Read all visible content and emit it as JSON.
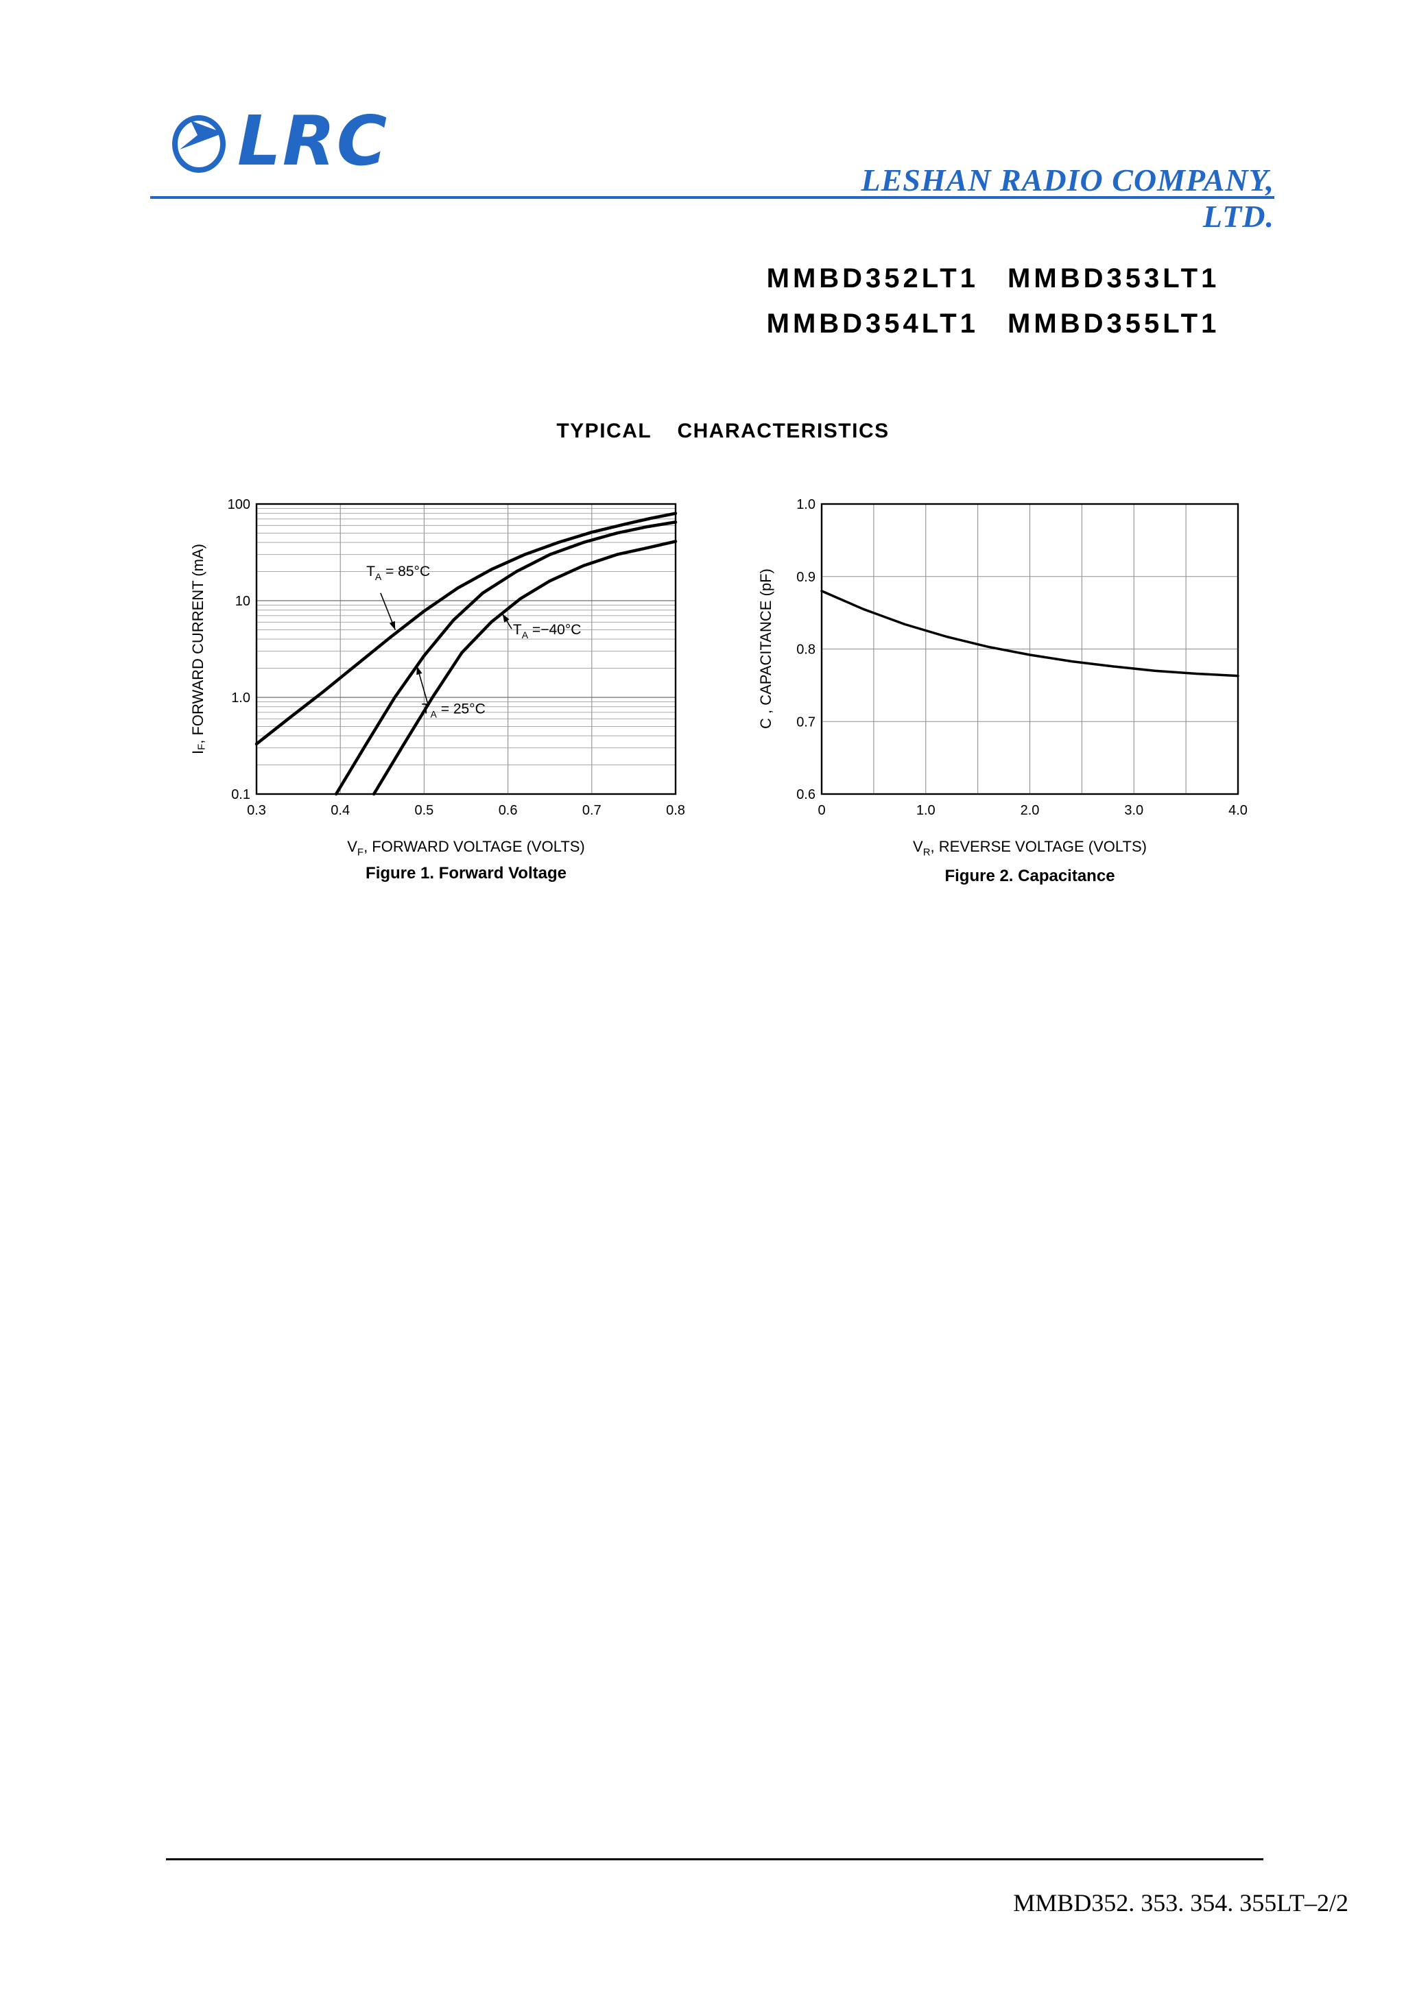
{
  "header": {
    "logo_text": "LRC",
    "company": "LESHAN RADIO COMPANY, LTD.",
    "accent_color": "#2268c4"
  },
  "title_block": {
    "line1": "MMBD352LT1 MMBD353LT1",
    "line2": "MMBD354LT1 MMBD355LT1"
  },
  "section_title": "TYPICAL CHARACTERISTICS",
  "footer": {
    "page_ref": "MMBD352. 353. 354. 355LT–2/2"
  },
  "chart_data": [
    {
      "id": "forward-voltage",
      "type": "line",
      "title": "Figure 1. Forward Voltage",
      "xlabel": {
        "pre": "V",
        "sub": "F",
        "post": ", FORWARD VOLTAGE (VOLTS)"
      },
      "ylabel": {
        "pre": "I",
        "sub": "F",
        "post": ", FORWARD CURRENT (mA)"
      },
      "xlim": [
        0.3,
        0.8
      ],
      "ylim": [
        0.1,
        100
      ],
      "yscale": "log",
      "grid": true,
      "x_ticks": [
        0.3,
        0.4,
        0.5,
        0.6,
        0.7,
        0.8
      ],
      "x_tick_labels": [
        "0.3",
        "0.4",
        "0.5",
        "0.6",
        "0.7",
        "0.8"
      ],
      "x_grid": [
        0.4,
        0.5,
        0.6,
        0.7
      ],
      "y_ticks": [
        0.1,
        1,
        10,
        100
      ],
      "y_tick_labels": [
        "0.1",
        "1.0",
        "10",
        "100"
      ],
      "series": [
        {
          "name": "TA = 85°C",
          "x": [
            0.3,
            0.34,
            0.38,
            0.42,
            0.46,
            0.5,
            0.54,
            0.58,
            0.62,
            0.66,
            0.7,
            0.74,
            0.77,
            0.8
          ],
          "y": [
            0.33,
            0.62,
            1.15,
            2.2,
            4.2,
            7.8,
            13.5,
            21,
            30,
            40,
            51,
            62,
            71,
            80
          ]
        },
        {
          "name": "TA = 25°C",
          "x": [
            0.395,
            0.43,
            0.465,
            0.5,
            0.535,
            0.57,
            0.61,
            0.65,
            0.69,
            0.73,
            0.765,
            0.8
          ],
          "y": [
            0.1,
            0.32,
            1.0,
            2.7,
            6.3,
            12,
            20,
            30,
            40,
            50,
            58,
            65
          ]
        },
        {
          "name": "TA = −40°C",
          "x": [
            0.44,
            0.475,
            0.51,
            0.545,
            0.58,
            0.615,
            0.65,
            0.69,
            0.73,
            0.765,
            0.8
          ],
          "y": [
            0.1,
            0.32,
            1.0,
            2.9,
            6.0,
            10.5,
            16,
            23,
            30,
            35,
            41
          ]
        }
      ],
      "annotations": [
        {
          "label": {
            "pre": "T",
            "sub": "A",
            "post": " = 85°C"
          },
          "text_x": 0.431,
          "text_y": 18,
          "arrow": [
            [
              0.448,
              12.0
            ],
            [
              0.4655,
              5.0
            ]
          ]
        },
        {
          "label": {
            "pre": "T",
            "sub": "A",
            "post": " =−40°C"
          },
          "text_x": 0.606,
          "text_y": 4.5,
          "arrow": [
            [
              0.6045,
              5.1
            ],
            [
              0.5935,
              7.3
            ]
          ]
        },
        {
          "label": {
            "pre": "T",
            "sub": "A",
            "post": " = 25°C"
          },
          "text_x": 0.497,
          "text_y": 0.68,
          "arrow": [
            [
              0.504,
              0.88
            ],
            [
              0.4915,
              2.1
            ]
          ]
        }
      ]
    },
    {
      "id": "capacitance",
      "type": "line",
      "title": "Figure 2. Capacitance",
      "xlabel": {
        "pre": "V",
        "sub": "R",
        "post": ", REVERSE VOLTAGE (VOLTS)"
      },
      "ylabel": {
        "pre": "C",
        "sub": "",
        "post": " , CAPACITANCE (pF)"
      },
      "xlim": [
        0,
        4
      ],
      "ylim": [
        0.6,
        1.0
      ],
      "yscale": "linear",
      "grid": true,
      "x_ticks": [
        0,
        1,
        2,
        3,
        4
      ],
      "x_tick_labels": [
        "0",
        "1.0",
        "2.0",
        "3.0",
        "4.0"
      ],
      "x_grid": [
        0.5,
        1.0,
        1.5,
        2.0,
        2.5,
        3.0,
        3.5
      ],
      "y_ticks": [
        0.6,
        0.7,
        0.8,
        0.9,
        1.0
      ],
      "y_tick_labels": [
        "0.6",
        "0.7",
        "0.8",
        "0.9",
        "1.0"
      ],
      "y_grid": [
        0.7,
        0.8,
        0.9
      ],
      "series": [
        {
          "name": "capacitance",
          "x": [
            0,
            0.4,
            0.8,
            1.2,
            1.6,
            2.0,
            2.4,
            2.8,
            3.2,
            3.6,
            4.0
          ],
          "y": [
            0.88,
            0.855,
            0.834,
            0.817,
            0.803,
            0.792,
            0.783,
            0.776,
            0.77,
            0.766,
            0.763
          ]
        }
      ],
      "annotations": []
    }
  ]
}
